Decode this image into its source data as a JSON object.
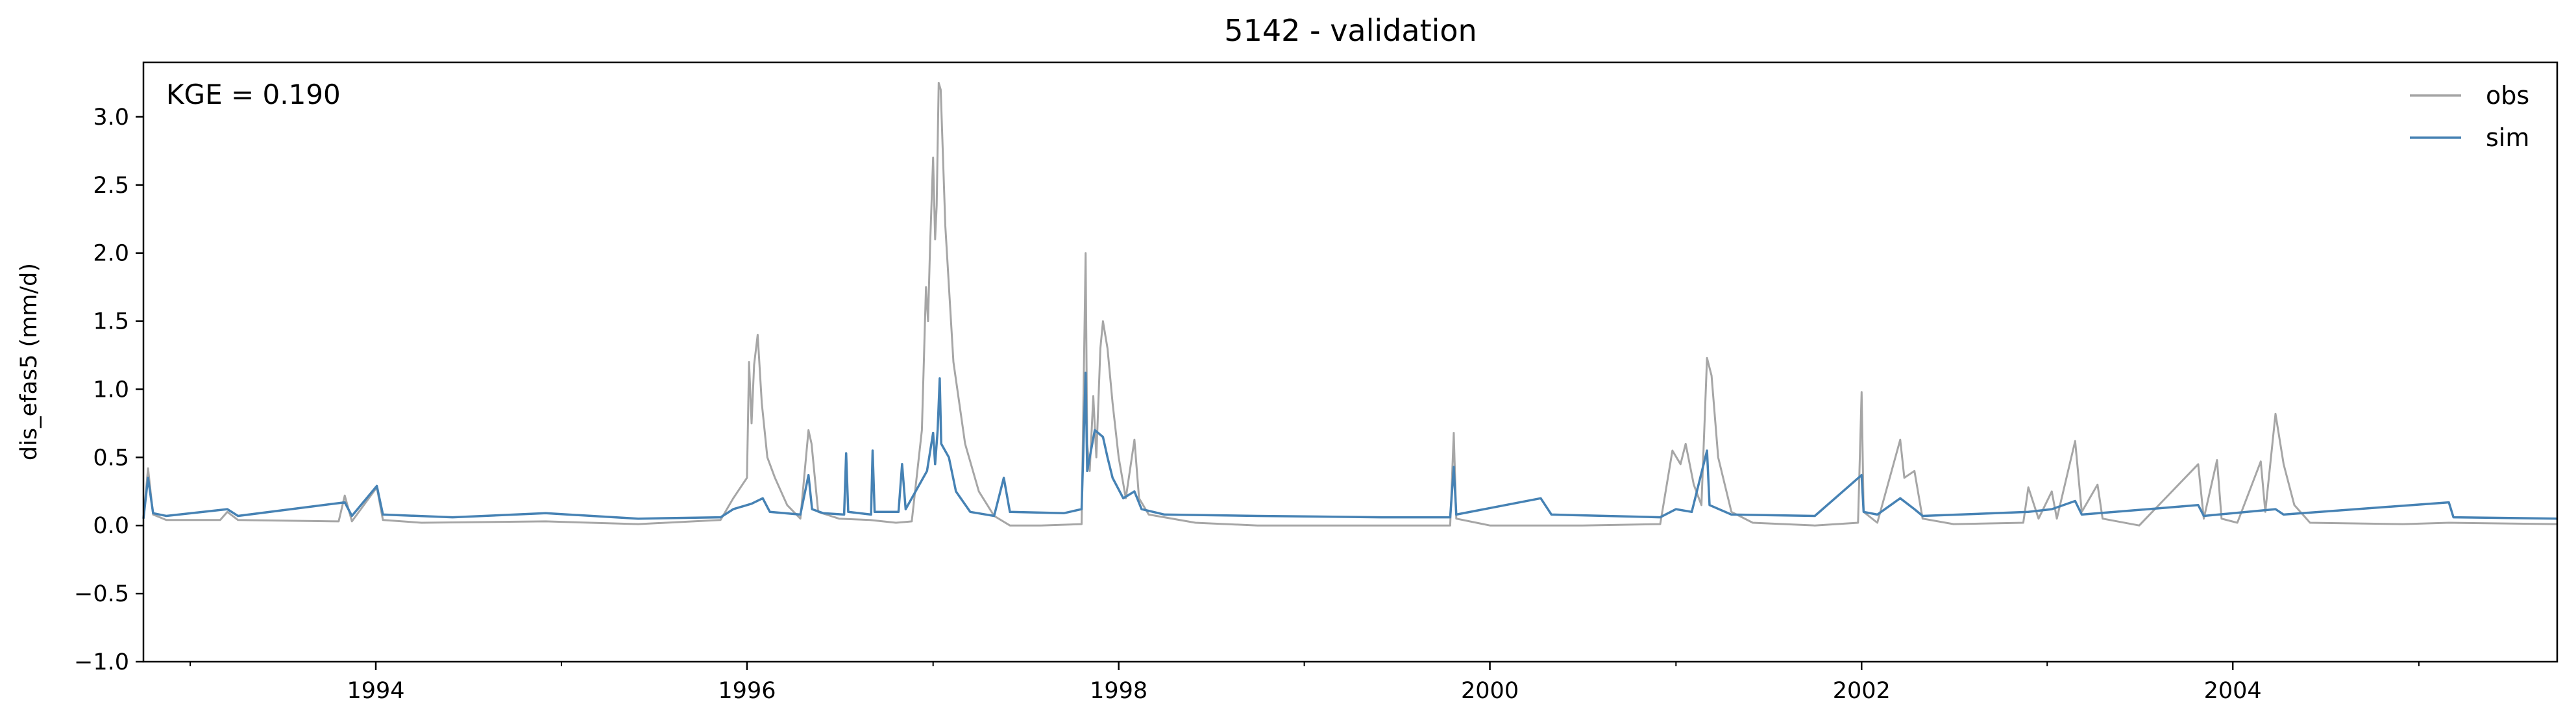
{
  "chart_data": {
    "type": "line",
    "title": "5142 - validation",
    "xlabel": "",
    "ylabel": "dis_efas5 (mm/d)",
    "annotation": "KGE = 0.190",
    "x_range": [
      "1992-10-01",
      "2005-09-30"
    ],
    "ylim": [
      -1.0,
      3.4
    ],
    "y_ticks": [
      -1.0,
      -0.5,
      0.0,
      0.5,
      1.0,
      1.5,
      2.0,
      2.5,
      3.0
    ],
    "y_tick_labels": [
      "−1.0",
      "−0.5",
      "0.0",
      "0.5",
      "1.0",
      "1.5",
      "2.0",
      "2.5",
      "3.0"
    ],
    "x_ticks": [
      "1994-01-01",
      "1996-01-01",
      "1998-01-01",
      "2000-01-01",
      "2002-01-01",
      "2004-01-01"
    ],
    "x_tick_labels": [
      "1994",
      "1996",
      "1998",
      "2000",
      "2002",
      "2004"
    ],
    "grid": false,
    "legend_position": "top-right",
    "series": [
      {
        "name": "obs",
        "color": "#a6a6a6",
        "points": [
          [
            "1992-10-01",
            0.05
          ],
          [
            "1992-10-10",
            0.42
          ],
          [
            "1992-10-20",
            0.08
          ],
          [
            "1992-11-15",
            0.04
          ],
          [
            "1993-03-01",
            0.04
          ],
          [
            "1993-03-15",
            0.1
          ],
          [
            "1993-04-05",
            0.04
          ],
          [
            "1993-10-20",
            0.03
          ],
          [
            "1993-11-01",
            0.22
          ],
          [
            "1993-11-15",
            0.03
          ],
          [
            "1994-01-03",
            0.28
          ],
          [
            "1994-01-15",
            0.04
          ],
          [
            "1994-04-01",
            0.02
          ],
          [
            "1994-12-01",
            0.03
          ],
          [
            "1995-06-01",
            0.01
          ],
          [
            "1995-11-10",
            0.04
          ],
          [
            "1995-12-05",
            0.2
          ],
          [
            "1996-01-01",
            0.35
          ],
          [
            "1996-01-05",
            1.2
          ],
          [
            "1996-01-10",
            0.75
          ],
          [
            "1996-01-15",
            1.18
          ],
          [
            "1996-01-22",
            1.4
          ],
          [
            "1996-01-30",
            0.9
          ],
          [
            "1996-02-10",
            0.5
          ],
          [
            "1996-02-25",
            0.35
          ],
          [
            "1996-03-20",
            0.15
          ],
          [
            "1996-04-15",
            0.05
          ],
          [
            "1996-05-01",
            0.7
          ],
          [
            "1996-05-07",
            0.6
          ],
          [
            "1996-05-20",
            0.1
          ],
          [
            "1996-06-30",
            0.05
          ],
          [
            "1996-08-30",
            0.04
          ],
          [
            "1996-10-20",
            0.02
          ],
          [
            "1996-11-20",
            0.03
          ],
          [
            "1996-12-10",
            0.7
          ],
          [
            "1996-12-18",
            1.75
          ],
          [
            "1996-12-22",
            1.5
          ],
          [
            "1996-12-26",
            2.05
          ],
          [
            "1997-01-01",
            2.7
          ],
          [
            "1997-01-05",
            2.1
          ],
          [
            "1997-01-08",
            2.35
          ],
          [
            "1997-01-12",
            3.25
          ],
          [
            "1997-01-16",
            3.2
          ],
          [
            "1997-01-25",
            2.2
          ],
          [
            "1997-02-10",
            1.2
          ],
          [
            "1997-03-05",
            0.6
          ],
          [
            "1997-04-01",
            0.25
          ],
          [
            "1997-05-01",
            0.07
          ],
          [
            "1997-06-01",
            0.0
          ],
          [
            "1997-08-01",
            0.0
          ],
          [
            "1997-10-20",
            0.01
          ],
          [
            "1997-10-28",
            2.0
          ],
          [
            "1997-10-31",
            0.6
          ],
          [
            "1997-11-05",
            0.4
          ],
          [
            "1997-11-12",
            0.95
          ],
          [
            "1997-11-18",
            0.5
          ],
          [
            "1997-11-26",
            1.3
          ],
          [
            "1997-12-01",
            1.5
          ],
          [
            "1997-12-10",
            1.3
          ],
          [
            "1997-12-20",
            0.9
          ],
          [
            "1998-01-01",
            0.5
          ],
          [
            "1998-01-15",
            0.2
          ],
          [
            "1998-02-01",
            0.63
          ],
          [
            "1998-02-10",
            0.2
          ],
          [
            "1998-03-01",
            0.08
          ],
          [
            "1998-06-01",
            0.02
          ],
          [
            "1998-10-01",
            0.0
          ],
          [
            "1999-06-01",
            0.0
          ],
          [
            "1999-10-15",
            0.0
          ],
          [
            "1999-10-22",
            0.68
          ],
          [
            "1999-10-27",
            0.05
          ],
          [
            "2000-01-01",
            0.0
          ],
          [
            "2000-07-01",
            0.0
          ],
          [
            "2000-12-01",
            0.01
          ],
          [
            "2000-12-25",
            0.55
          ],
          [
            "2001-01-10",
            0.45
          ],
          [
            "2001-01-20",
            0.6
          ],
          [
            "2001-02-05",
            0.3
          ],
          [
            "2001-02-20",
            0.15
          ],
          [
            "2001-03-03",
            1.23
          ],
          [
            "2001-03-12",
            1.1
          ],
          [
            "2001-03-25",
            0.5
          ],
          [
            "2001-04-20",
            0.1
          ],
          [
            "2001-06-01",
            0.02
          ],
          [
            "2001-10-01",
            0.0
          ],
          [
            "2001-12-25",
            0.02
          ],
          [
            "2002-01-01",
            0.98
          ],
          [
            "2002-01-05",
            0.1
          ],
          [
            "2002-02-01",
            0.02
          ],
          [
            "2002-03-18",
            0.63
          ],
          [
            "2002-03-26",
            0.35
          ],
          [
            "2002-04-15",
            0.4
          ],
          [
            "2002-05-01",
            0.05
          ],
          [
            "2002-07-01",
            0.01
          ],
          [
            "2002-11-15",
            0.02
          ],
          [
            "2002-11-25",
            0.28
          ],
          [
            "2002-12-15",
            0.05
          ],
          [
            "2003-01-10",
            0.25
          ],
          [
            "2003-01-20",
            0.05
          ],
          [
            "2003-02-25",
            0.62
          ],
          [
            "2003-03-10",
            0.1
          ],
          [
            "2003-04-10",
            0.3
          ],
          [
            "2003-04-20",
            0.05
          ],
          [
            "2003-07-01",
            0.0
          ],
          [
            "2003-10-25",
            0.45
          ],
          [
            "2003-11-05",
            0.05
          ],
          [
            "2003-12-01",
            0.48
          ],
          [
            "2003-12-10",
            0.05
          ],
          [
            "2004-01-10",
            0.02
          ],
          [
            "2004-02-25",
            0.47
          ],
          [
            "2004-03-05",
            0.1
          ],
          [
            "2004-03-25",
            0.82
          ],
          [
            "2004-04-10",
            0.45
          ],
          [
            "2004-05-01",
            0.15
          ],
          [
            "2004-06-01",
            0.02
          ],
          [
            "2004-12-01",
            0.01
          ],
          [
            "2005-03-01",
            0.02
          ],
          [
            "2005-09-30",
            0.01
          ]
        ]
      },
      {
        "name": "sim",
        "color": "#4682b4",
        "points": [
          [
            "1992-10-01",
            0.05
          ],
          [
            "1992-10-10",
            0.35
          ],
          [
            "1992-10-20",
            0.09
          ],
          [
            "1992-11-15",
            0.07
          ],
          [
            "1993-03-15",
            0.12
          ],
          [
            "1993-04-05",
            0.07
          ],
          [
            "1993-11-01",
            0.17
          ],
          [
            "1993-11-15",
            0.07
          ],
          [
            "1994-01-03",
            0.29
          ],
          [
            "1994-01-15",
            0.08
          ],
          [
            "1994-06-01",
            0.06
          ],
          [
            "1994-12-01",
            0.09
          ],
          [
            "1995-06-01",
            0.05
          ],
          [
            "1995-11-10",
            0.06
          ],
          [
            "1995-12-05",
            0.12
          ],
          [
            "1996-01-01",
            0.15
          ],
          [
            "1996-01-10",
            0.16
          ],
          [
            "1996-02-01",
            0.2
          ],
          [
            "1996-02-15",
            0.1
          ],
          [
            "1996-04-15",
            0.08
          ],
          [
            "1996-05-01",
            0.37
          ],
          [
            "1996-05-08",
            0.12
          ],
          [
            "1996-05-30",
            0.09
          ],
          [
            "1996-07-10",
            0.08
          ],
          [
            "1996-07-14",
            0.53
          ],
          [
            "1996-07-18",
            0.1
          ],
          [
            "1996-09-01",
            0.08
          ],
          [
            "1996-09-04",
            0.55
          ],
          [
            "1996-09-08",
            0.1
          ],
          [
            "1996-10-25",
            0.1
          ],
          [
            "1996-11-01",
            0.45
          ],
          [
            "1996-11-08",
            0.12
          ],
          [
            "1996-12-20",
            0.4
          ],
          [
            "1997-01-01",
            0.68
          ],
          [
            "1997-01-05",
            0.45
          ],
          [
            "1997-01-10",
            0.7
          ],
          [
            "1997-01-14",
            1.08
          ],
          [
            "1997-01-17",
            0.6
          ],
          [
            "1997-02-01",
            0.5
          ],
          [
            "1997-02-15",
            0.25
          ],
          [
            "1997-03-15",
            0.1
          ],
          [
            "1997-05-01",
            0.07
          ],
          [
            "1997-05-20",
            0.35
          ],
          [
            "1997-06-01",
            0.1
          ],
          [
            "1997-09-15",
            0.09
          ],
          [
            "1997-10-20",
            0.12
          ],
          [
            "1997-10-28",
            1.12
          ],
          [
            "1997-10-31",
            0.4
          ],
          [
            "1997-11-15",
            0.7
          ],
          [
            "1997-12-01",
            0.65
          ],
          [
            "1997-12-10",
            0.5
          ],
          [
            "1997-12-20",
            0.35
          ],
          [
            "1998-01-10",
            0.2
          ],
          [
            "1998-02-01",
            0.25
          ],
          [
            "1998-02-15",
            0.12
          ],
          [
            "1998-04-01",
            0.08
          ],
          [
            "1998-10-01",
            0.07
          ],
          [
            "1999-06-01",
            0.06
          ],
          [
            "1999-10-15",
            0.06
          ],
          [
            "1999-10-22",
            0.43
          ],
          [
            "1999-10-27",
            0.08
          ],
          [
            "2000-04-10",
            0.2
          ],
          [
            "2000-05-01",
            0.08
          ],
          [
            "2000-12-01",
            0.06
          ],
          [
            "2001-01-01",
            0.12
          ],
          [
            "2001-02-01",
            0.1
          ],
          [
            "2001-03-03",
            0.55
          ],
          [
            "2001-03-08",
            0.15
          ],
          [
            "2001-04-20",
            0.08
          ],
          [
            "2001-10-01",
            0.07
          ],
          [
            "2002-01-01",
            0.37
          ],
          [
            "2002-01-05",
            0.1
          ],
          [
            "2002-02-01",
            0.08
          ],
          [
            "2002-03-18",
            0.2
          ],
          [
            "2002-04-15",
            0.12
          ],
          [
            "2002-05-01",
            0.07
          ],
          [
            "2002-11-25",
            0.1
          ],
          [
            "2003-01-10",
            0.12
          ],
          [
            "2003-02-25",
            0.18
          ],
          [
            "2003-03-10",
            0.08
          ],
          [
            "2003-10-25",
            0.15
          ],
          [
            "2003-11-05",
            0.07
          ],
          [
            "2004-03-25",
            0.12
          ],
          [
            "2004-04-10",
            0.08
          ],
          [
            "2005-03-01",
            0.17
          ],
          [
            "2005-03-10",
            0.06
          ],
          [
            "2005-09-30",
            0.05
          ]
        ]
      }
    ]
  }
}
